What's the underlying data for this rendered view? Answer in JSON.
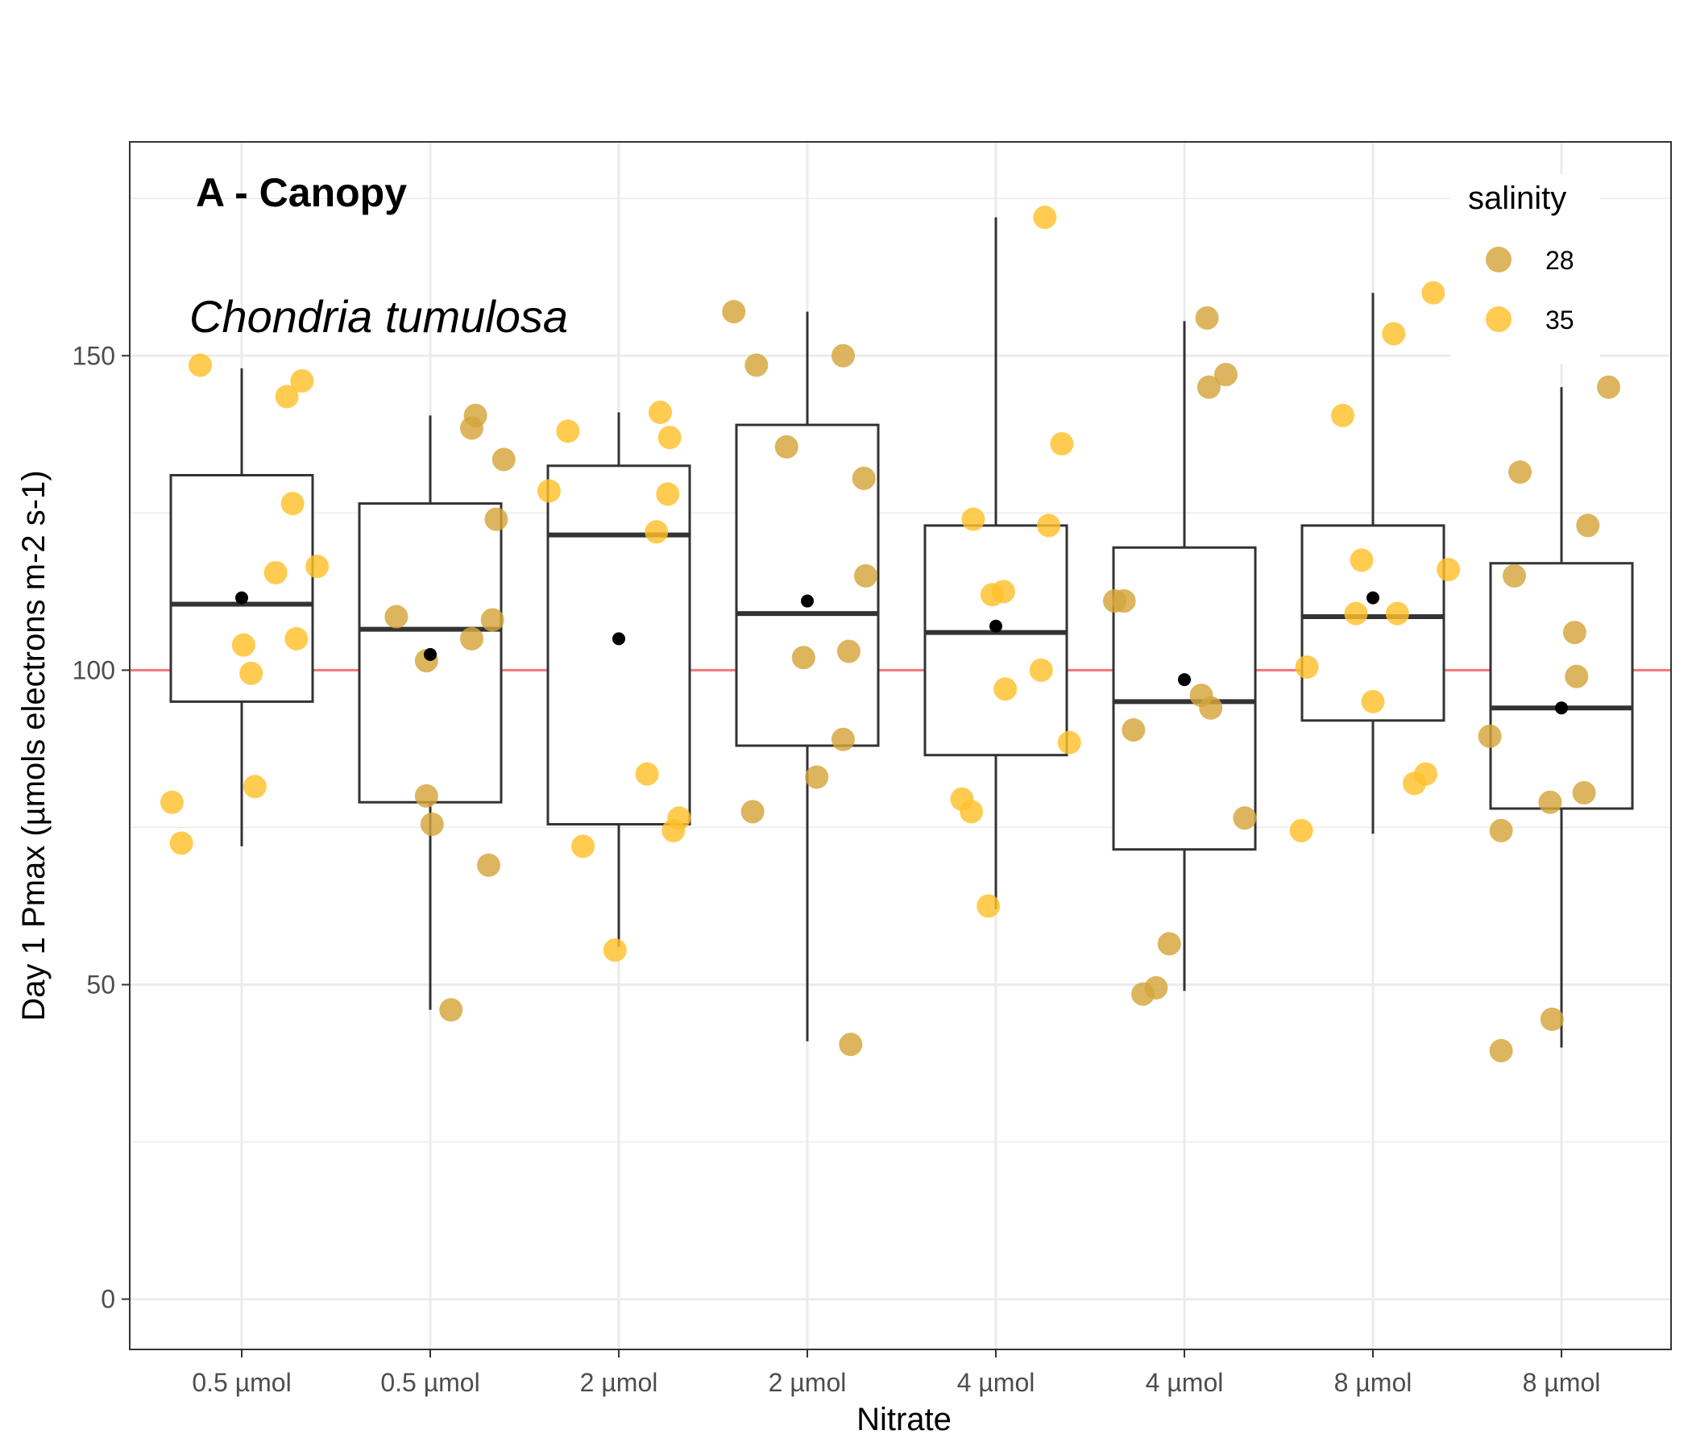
{
  "chart_data": {
    "type": "box",
    "panel_label": "A - Canopy",
    "species_annotation": "Chondria tumulosa",
    "xlabel": "Nitrate",
    "ylabel": "Day 1 Pmax (µmols electrons m-2 s-1)",
    "categories": [
      "0.5 µmol",
      "0.5 µmol",
      "2 µmol",
      "2 µmol",
      "4 µmol",
      "4 µmol",
      "8 µmol",
      "8 µmol"
    ],
    "ylim": [
      -8,
      184
    ],
    "yticks": [
      0,
      50,
      100,
      150
    ],
    "grid": true,
    "reference_line": {
      "y": 100,
      "color": "#f07a7a"
    },
    "legend": {
      "title": "salinity",
      "position": "top-right",
      "entries": [
        "28",
        "35"
      ]
    },
    "series_colors": {
      "28": "#d4a53a",
      "35": "#ffc12b"
    },
    "boxes": [
      {
        "whisker_low": 72,
        "q1": 95,
        "median": 110.5,
        "q3": 131,
        "whisker_high": 148,
        "mean": 111.5
      },
      {
        "whisker_low": 46,
        "q1": 79,
        "median": 106.5,
        "q3": 126.5,
        "whisker_high": 140.5,
        "mean": 102.5
      },
      {
        "whisker_low": 56,
        "q1": 75.5,
        "median": 121.5,
        "q3": 132.5,
        "whisker_high": 141,
        "mean": 105
      },
      {
        "whisker_low": 41,
        "q1": 88,
        "median": 109,
        "q3": 139,
        "whisker_high": 157,
        "mean": 111
      },
      {
        "whisker_low": 62,
        "q1": 86.5,
        "median": 106,
        "q3": 123,
        "whisker_high": 172,
        "mean": 107
      },
      {
        "whisker_low": 49,
        "q1": 71.5,
        "median": 95,
        "q3": 119.5,
        "whisker_high": 155.5,
        "mean": 98.5
      },
      {
        "whisker_low": 74,
        "q1": 92,
        "median": 108.5,
        "q3": 123,
        "whisker_high": 160,
        "mean": 111.5
      },
      {
        "whisker_low": 40,
        "q1": 78,
        "median": 94,
        "q3": 117,
        "whisker_high": 145,
        "mean": 94
      }
    ],
    "points": [
      {
        "category": 0,
        "offset": -0.37,
        "y": 79,
        "salinity": "35"
      },
      {
        "category": 0,
        "offset": -0.32,
        "y": 72.5,
        "salinity": "35"
      },
      {
        "category": 0,
        "offset": -0.22,
        "y": 148.5,
        "salinity": "35"
      },
      {
        "category": 0,
        "offset": 0.01,
        "y": 104,
        "salinity": "35"
      },
      {
        "category": 0,
        "offset": 0.05,
        "y": 99.5,
        "salinity": "35"
      },
      {
        "category": 0,
        "offset": 0.07,
        "y": 81.5,
        "salinity": "35"
      },
      {
        "category": 0,
        "offset": 0.18,
        "y": 115.5,
        "salinity": "35"
      },
      {
        "category": 0,
        "offset": 0.24,
        "y": 143.5,
        "salinity": "35"
      },
      {
        "category": 0,
        "offset": 0.27,
        "y": 126.5,
        "salinity": "35"
      },
      {
        "category": 0,
        "offset": 0.29,
        "y": 105,
        "salinity": "35"
      },
      {
        "category": 0,
        "offset": 0.32,
        "y": 146,
        "salinity": "35"
      },
      {
        "category": 0,
        "offset": 0.4,
        "y": 116.5,
        "salinity": "35"
      },
      {
        "category": 1,
        "offset": -0.18,
        "y": 108.5,
        "salinity": "28"
      },
      {
        "category": 1,
        "offset": -0.02,
        "y": 80,
        "salinity": "28"
      },
      {
        "category": 1,
        "offset": -0.02,
        "y": 101.5,
        "salinity": "28"
      },
      {
        "category": 1,
        "offset": 0.01,
        "y": 75.5,
        "salinity": "28"
      },
      {
        "category": 1,
        "offset": 0.11,
        "y": 46,
        "salinity": "28"
      },
      {
        "category": 1,
        "offset": 0.22,
        "y": 138.5,
        "salinity": "28"
      },
      {
        "category": 1,
        "offset": 0.22,
        "y": 105,
        "salinity": "28"
      },
      {
        "category": 1,
        "offset": 0.24,
        "y": 140.5,
        "salinity": "28"
      },
      {
        "category": 1,
        "offset": 0.31,
        "y": 69,
        "salinity": "28"
      },
      {
        "category": 1,
        "offset": 0.33,
        "y": 108,
        "salinity": "28"
      },
      {
        "category": 1,
        "offset": 0.35,
        "y": 124,
        "salinity": "28"
      },
      {
        "category": 1,
        "offset": 0.39,
        "y": 133.5,
        "salinity": "28"
      },
      {
        "category": 2,
        "offset": -0.37,
        "y": 128.5,
        "salinity": "35"
      },
      {
        "category": 2,
        "offset": -0.27,
        "y": 138,
        "salinity": "35"
      },
      {
        "category": 2,
        "offset": -0.19,
        "y": 72,
        "salinity": "35"
      },
      {
        "category": 2,
        "offset": -0.02,
        "y": 55.5,
        "salinity": "35"
      },
      {
        "category": 2,
        "offset": 0.15,
        "y": 83.5,
        "salinity": "35"
      },
      {
        "category": 2,
        "offset": 0.2,
        "y": 122,
        "salinity": "35"
      },
      {
        "category": 2,
        "offset": 0.22,
        "y": 141,
        "salinity": "35"
      },
      {
        "category": 2,
        "offset": 0.26,
        "y": 128,
        "salinity": "35"
      },
      {
        "category": 2,
        "offset": 0.27,
        "y": 137,
        "salinity": "35"
      },
      {
        "category": 2,
        "offset": 0.29,
        "y": 74.5,
        "salinity": "35"
      },
      {
        "category": 2,
        "offset": 0.32,
        "y": 76.5,
        "salinity": "35"
      },
      {
        "category": 3,
        "offset": -0.39,
        "y": 157,
        "salinity": "28"
      },
      {
        "category": 3,
        "offset": -0.29,
        "y": 77.5,
        "salinity": "28"
      },
      {
        "category": 3,
        "offset": -0.27,
        "y": 148.5,
        "salinity": "28"
      },
      {
        "category": 3,
        "offset": -0.11,
        "y": 135.5,
        "salinity": "28"
      },
      {
        "category": 3,
        "offset": -0.02,
        "y": 102,
        "salinity": "28"
      },
      {
        "category": 3,
        "offset": 0.05,
        "y": 83,
        "salinity": "28"
      },
      {
        "category": 3,
        "offset": 0.19,
        "y": 150,
        "salinity": "28"
      },
      {
        "category": 3,
        "offset": 0.19,
        "y": 89,
        "salinity": "28"
      },
      {
        "category": 3,
        "offset": 0.22,
        "y": 103,
        "salinity": "28"
      },
      {
        "category": 3,
        "offset": 0.23,
        "y": 40.5,
        "salinity": "28"
      },
      {
        "category": 3,
        "offset": 0.3,
        "y": 130.5,
        "salinity": "28"
      },
      {
        "category": 3,
        "offset": 0.31,
        "y": 115,
        "salinity": "28"
      },
      {
        "category": 4,
        "offset": -0.18,
        "y": 79.5,
        "salinity": "35"
      },
      {
        "category": 4,
        "offset": -0.13,
        "y": 77.5,
        "salinity": "35"
      },
      {
        "category": 4,
        "offset": -0.12,
        "y": 124,
        "salinity": "35"
      },
      {
        "category": 4,
        "offset": -0.04,
        "y": 62.5,
        "salinity": "35"
      },
      {
        "category": 4,
        "offset": -0.02,
        "y": 112,
        "salinity": "35"
      },
      {
        "category": 4,
        "offset": 0.04,
        "y": 112.5,
        "salinity": "35"
      },
      {
        "category": 4,
        "offset": 0.05,
        "y": 97,
        "salinity": "35"
      },
      {
        "category": 4,
        "offset": 0.24,
        "y": 100,
        "salinity": "35"
      },
      {
        "category": 4,
        "offset": 0.26,
        "y": 172,
        "salinity": "35"
      },
      {
        "category": 4,
        "offset": 0.28,
        "y": 123,
        "salinity": "35"
      },
      {
        "category": 4,
        "offset": 0.35,
        "y": 136,
        "salinity": "35"
      },
      {
        "category": 4,
        "offset": 0.39,
        "y": 88.5,
        "salinity": "35"
      },
      {
        "category": 5,
        "offset": -0.37,
        "y": 111,
        "salinity": "28"
      },
      {
        "category": 5,
        "offset": -0.32,
        "y": 111,
        "salinity": "28"
      },
      {
        "category": 5,
        "offset": -0.27,
        "y": 90.5,
        "salinity": "28"
      },
      {
        "category": 5,
        "offset": -0.22,
        "y": 48.5,
        "salinity": "28"
      },
      {
        "category": 5,
        "offset": -0.15,
        "y": 49.5,
        "salinity": "28"
      },
      {
        "category": 5,
        "offset": -0.08,
        "y": 56.5,
        "salinity": "28"
      },
      {
        "category": 5,
        "offset": 0.09,
        "y": 96,
        "salinity": "28"
      },
      {
        "category": 5,
        "offset": 0.12,
        "y": 156,
        "salinity": "28"
      },
      {
        "category": 5,
        "offset": 0.13,
        "y": 145,
        "salinity": "28"
      },
      {
        "category": 5,
        "offset": 0.14,
        "y": 94,
        "salinity": "28"
      },
      {
        "category": 5,
        "offset": 0.22,
        "y": 147,
        "salinity": "28"
      },
      {
        "category": 5,
        "offset": 0.32,
        "y": 76.5,
        "salinity": "28"
      },
      {
        "category": 6,
        "offset": -0.38,
        "y": 74.5,
        "salinity": "35"
      },
      {
        "category": 6,
        "offset": -0.35,
        "y": 100.5,
        "salinity": "35"
      },
      {
        "category": 6,
        "offset": -0.16,
        "y": 140.5,
        "salinity": "35"
      },
      {
        "category": 6,
        "offset": -0.09,
        "y": 109,
        "salinity": "35"
      },
      {
        "category": 6,
        "offset": -0.06,
        "y": 117.5,
        "salinity": "35"
      },
      {
        "category": 6,
        "offset": 0.0,
        "y": 95,
        "salinity": "35"
      },
      {
        "category": 6,
        "offset": 0.11,
        "y": 153.5,
        "salinity": "35"
      },
      {
        "category": 6,
        "offset": 0.13,
        "y": 109,
        "salinity": "35"
      },
      {
        "category": 6,
        "offset": 0.22,
        "y": 82,
        "salinity": "35"
      },
      {
        "category": 6,
        "offset": 0.28,
        "y": 83.5,
        "salinity": "35"
      },
      {
        "category": 6,
        "offset": 0.32,
        "y": 160,
        "salinity": "35"
      },
      {
        "category": 6,
        "offset": 0.4,
        "y": 116,
        "salinity": "35"
      },
      {
        "category": 7,
        "offset": -0.38,
        "y": 89.5,
        "salinity": "28"
      },
      {
        "category": 7,
        "offset": -0.32,
        "y": 39.5,
        "salinity": "28"
      },
      {
        "category": 7,
        "offset": -0.32,
        "y": 74.5,
        "salinity": "28"
      },
      {
        "category": 7,
        "offset": -0.25,
        "y": 115,
        "salinity": "28"
      },
      {
        "category": 7,
        "offset": -0.22,
        "y": 131.5,
        "salinity": "28"
      },
      {
        "category": 7,
        "offset": -0.06,
        "y": 79,
        "salinity": "28"
      },
      {
        "category": 7,
        "offset": -0.05,
        "y": 44.5,
        "salinity": "28"
      },
      {
        "category": 7,
        "offset": 0.07,
        "y": 106,
        "salinity": "28"
      },
      {
        "category": 7,
        "offset": 0.08,
        "y": 99,
        "salinity": "28"
      },
      {
        "category": 7,
        "offset": 0.12,
        "y": 80.5,
        "salinity": "28"
      },
      {
        "category": 7,
        "offset": 0.14,
        "y": 123,
        "salinity": "28"
      },
      {
        "category": 7,
        "offset": 0.25,
        "y": 145,
        "salinity": "28"
      }
    ]
  }
}
